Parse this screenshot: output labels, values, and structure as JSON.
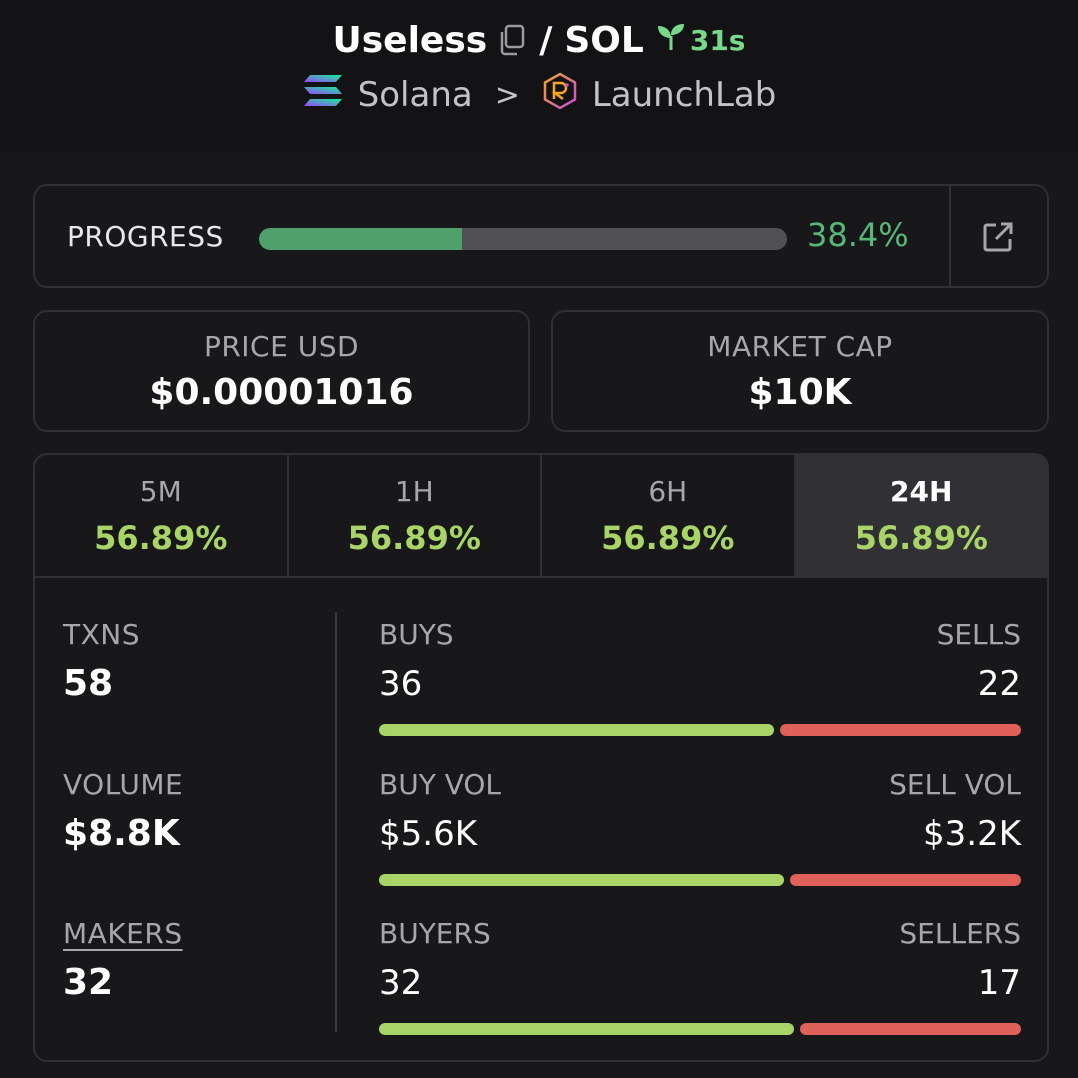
{
  "header": {
    "token": "Useless",
    "separator": "/",
    "quote": "SOL",
    "age": "31s",
    "chain": "Solana",
    "breadcrumb_sep": ">",
    "dex": "LaunchLab"
  },
  "progress": {
    "label": "PROGRESS",
    "percent_text": "38.4%",
    "percent_value": 38.4
  },
  "price": {
    "label": "PRICE USD",
    "value": "$0.00001016"
  },
  "market_cap": {
    "label": "MARKET CAP",
    "value": "$10K"
  },
  "tabs": [
    {
      "name": "5M",
      "value": "56.89%"
    },
    {
      "name": "1H",
      "value": "56.89%"
    },
    {
      "name": "6H",
      "value": "56.89%"
    },
    {
      "name": "24H",
      "value": "56.89%",
      "active": true
    }
  ],
  "stats": {
    "txns": {
      "label": "TXNS",
      "value": "58"
    },
    "volume": {
      "label": "VOLUME",
      "value": "$8.8K"
    },
    "makers": {
      "label": "MAKERS",
      "value": "32"
    }
  },
  "ratios": {
    "buys": {
      "left_label": "BUYS",
      "right_label": "SELLS",
      "left_value": "36",
      "right_value": "22",
      "left_num": 36,
      "right_num": 22
    },
    "vol": {
      "left_label": "BUY VOL",
      "right_label": "SELL VOL",
      "left_value": "$5.6K",
      "right_value": "$3.2K",
      "left_num": 5.6,
      "right_num": 3.2
    },
    "makers": {
      "left_label": "BUYERS",
      "right_label": "SELLERS",
      "left_value": "32",
      "right_value": "17",
      "left_num": 32,
      "right_num": 17
    }
  },
  "colors": {
    "buy": "#a8d468",
    "sell": "#e0605a",
    "progress": "#4fa06a"
  },
  "icons": {
    "copy": "copy-icon",
    "age": "sprout-icon",
    "chain": "solana-logo-icon",
    "chevron": "chevron-right-icon",
    "dex": "launchlab-logo-icon",
    "external": "external-link-icon"
  }
}
